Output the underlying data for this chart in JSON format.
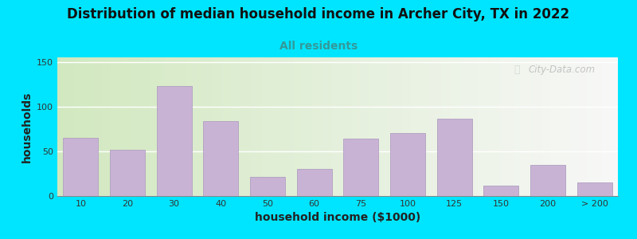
{
  "title": "Distribution of median household income in Archer City, TX in 2022",
  "subtitle": "All residents",
  "xlabel": "household income ($1000)",
  "ylabel": "households",
  "background_outer": "#00e5ff",
  "bar_color": "#c9b3d5",
  "bar_edge_color": "#b09fc0",
  "categories": [
    "10",
    "20",
    "30",
    "40",
    "50",
    "60",
    "75",
    "100",
    "125",
    "150",
    "200",
    "> 200"
  ],
  "heights": [
    65,
    52,
    123,
    84,
    21,
    30,
    64,
    70,
    86,
    12,
    35,
    15
  ],
  "ylim": [
    0,
    155
  ],
  "yticks": [
    0,
    50,
    100,
    150
  ],
  "title_fontsize": 12,
  "subtitle_fontsize": 10,
  "axis_label_fontsize": 10,
  "tick_fontsize": 8,
  "watermark": "City-Data.com",
  "bg_left_color": "#cfe8c0",
  "bg_right_color": "#f5f5f5"
}
